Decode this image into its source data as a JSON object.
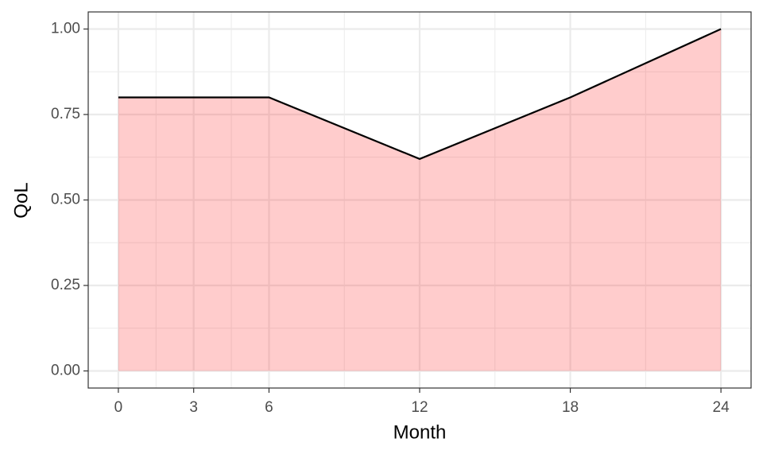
{
  "chart_data": {
    "type": "area",
    "x_label": "Month",
    "y_label": "QoL",
    "x": [
      0,
      3,
      6,
      12,
      18,
      24
    ],
    "series": [
      {
        "values": [
          0.8,
          0.8,
          0.8,
          0.62,
          0.8,
          1.0
        ],
        "color": "#000000",
        "fill_color": "#ff0000",
        "fill_opacity": 0.2
      }
    ],
    "xlim": [
      -1.2,
      25.2
    ],
    "ylim": [
      -0.05,
      1.05
    ],
    "xticks": [
      0,
      3,
      6,
      12,
      18,
      24
    ],
    "yticks": [
      {
        "value": 0,
        "label": "0.00"
      },
      {
        "value": 0.25,
        "label": "0.25"
      },
      {
        "value": 0.5,
        "label": "0.50"
      },
      {
        "value": 0.75,
        "label": "0.75"
      },
      {
        "value": 1,
        "label": "1.00"
      }
    ],
    "x_minor_ticks": [
      1.5,
      4.5,
      9,
      15,
      21
    ],
    "y_minor_ticks": [
      0.125,
      0.375,
      0.625,
      0.875
    ],
    "grid": true
  }
}
